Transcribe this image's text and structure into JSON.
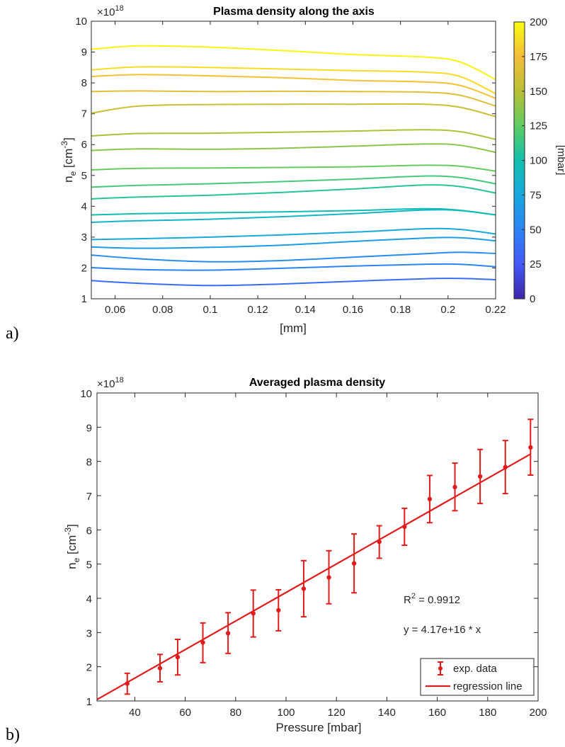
{
  "chart_data": [
    {
      "type": "line",
      "panel_letter": "a)",
      "title": "Plasma density along the axis",
      "xlabel": "[mm]",
      "ylabel": {
        "base": "n",
        "sub": "e",
        "open": " [cm",
        "sup": "-3",
        "close": "]"
      },
      "y_exponent": "×10",
      "y_exponent_power": "18",
      "xlim": [
        0.05,
        0.22
      ],
      "ylim": [
        1,
        10
      ],
      "xticks": [
        "0.06",
        "0.08",
        "0.1",
        "0.12",
        "0.14",
        "0.16",
        "0.18",
        "0.2",
        "0.22"
      ],
      "yticks": [
        "1",
        "2",
        "3",
        "4",
        "5",
        "6",
        "7",
        "8",
        "9",
        "10"
      ],
      "grid": false,
      "colorbar": {
        "label": "[mbar]",
        "range": [
          0,
          200
        ],
        "ticks": [
          "0",
          "25",
          "50",
          "75",
          "100",
          "125",
          "150",
          "175",
          "200"
        ],
        "colormap": "parula",
        "colors": [
          "#3e26a8",
          "#4358f6",
          "#2b83f6",
          "#17a8de",
          "#10c0ad",
          "#5ecc62",
          "#b8c033",
          "#f3be3a",
          "#f9fb0e"
        ]
      },
      "x": [
        0.05,
        0.07,
        0.1,
        0.13,
        0.16,
        0.19,
        0.205,
        0.22
      ],
      "series": [
        {
          "pressure": 37,
          "values": [
            1.59,
            1.5,
            1.43,
            1.48,
            1.57,
            1.65,
            1.66,
            1.62
          ]
        },
        {
          "pressure": 50,
          "values": [
            2.01,
            1.95,
            1.93,
            1.99,
            2.06,
            2.12,
            2.12,
            2.04
          ]
        },
        {
          "pressure": 57,
          "values": [
            2.42,
            2.3,
            2.2,
            2.24,
            2.35,
            2.46,
            2.51,
            2.47
          ]
        },
        {
          "pressure": 67,
          "values": [
            2.68,
            2.64,
            2.67,
            2.74,
            2.86,
            2.97,
            2.98,
            2.88
          ]
        },
        {
          "pressure": 77,
          "values": [
            2.92,
            2.95,
            3.0,
            3.07,
            3.16,
            3.27,
            3.25,
            3.1
          ]
        },
        {
          "pressure": 87,
          "values": [
            3.48,
            3.53,
            3.58,
            3.66,
            3.76,
            3.88,
            3.86,
            3.72
          ]
        },
        {
          "pressure": 97,
          "values": [
            3.72,
            3.76,
            3.79,
            3.82,
            3.86,
            3.92,
            3.87,
            3.72
          ]
        },
        {
          "pressure": 107,
          "values": [
            4.24,
            4.3,
            4.36,
            4.45,
            4.56,
            4.69,
            4.64,
            4.43
          ]
        },
        {
          "pressure": 117,
          "values": [
            4.62,
            4.68,
            4.73,
            4.8,
            4.88,
            4.98,
            4.93,
            4.73
          ]
        },
        {
          "pressure": 127,
          "values": [
            5.18,
            5.23,
            5.24,
            5.26,
            5.28,
            5.33,
            5.3,
            5.14
          ]
        },
        {
          "pressure": 137,
          "values": [
            5.81,
            5.86,
            5.85,
            5.88,
            5.95,
            6.02,
            5.98,
            5.75
          ]
        },
        {
          "pressure": 147,
          "values": [
            6.28,
            6.36,
            6.37,
            6.4,
            6.44,
            6.48,
            6.42,
            6.17
          ]
        },
        {
          "pressure": 157,
          "values": [
            7.02,
            7.25,
            7.3,
            7.31,
            7.31,
            7.31,
            7.21,
            6.91
          ]
        },
        {
          "pressure": 167,
          "values": [
            7.72,
            7.74,
            7.72,
            7.73,
            7.72,
            7.7,
            7.6,
            7.25
          ]
        },
        {
          "pressure": 177,
          "values": [
            8.21,
            8.27,
            8.23,
            8.17,
            8.08,
            8.03,
            7.92,
            7.5
          ]
        },
        {
          "pressure": 187,
          "values": [
            8.42,
            8.52,
            8.5,
            8.45,
            8.4,
            8.35,
            8.21,
            7.65
          ]
        },
        {
          "pressure": 197,
          "values": [
            9.09,
            9.2,
            9.16,
            9.05,
            8.92,
            8.84,
            8.68,
            8.11
          ]
        }
      ]
    },
    {
      "type": "scatter",
      "panel_letter": "b)",
      "title": "Averaged plasma density",
      "xlabel": "Pressure [mbar]",
      "ylabel": {
        "base": "n",
        "sub": "e",
        "open": " [cm",
        "sup": "-3",
        "close": "]"
      },
      "y_exponent": "×10",
      "y_exponent_power": "18",
      "xlim": [
        25,
        200
      ],
      "ylim": [
        1,
        10
      ],
      "xticks": [
        "40",
        "60",
        "80",
        "100",
        "120",
        "140",
        "160",
        "180",
        "200"
      ],
      "yticks": [
        "1",
        "2",
        "3",
        "4",
        "5",
        "6",
        "7",
        "8",
        "9",
        "10"
      ],
      "grid": false,
      "color": "#e01b1b",
      "legend": {
        "position": "bottom-right",
        "entries": [
          "exp. data",
          "regression line"
        ]
      },
      "annotations": {
        "r2_prefix": "R",
        "r2_sup": "2",
        "r2_value": " = 0.9912",
        "equation": "y = 4.17e+16 * x"
      },
      "regression": {
        "slope": 0.0417,
        "x_range": [
          25,
          197
        ]
      },
      "series": [
        {
          "name": "exp. data",
          "x": [
            37,
            50,
            57,
            67,
            77,
            87,
            97,
            107,
            117,
            127,
            137,
            147,
            157,
            167,
            177,
            187,
            197
          ],
          "y": [
            1.51,
            1.96,
            2.28,
            2.71,
            2.98,
            3.56,
            3.65,
            4.28,
            4.61,
            5.02,
            5.65,
            6.09,
            6.9,
            7.25,
            7.56,
            7.83,
            8.41
          ],
          "err_low": [
            1.2,
            1.56,
            1.76,
            2.12,
            2.39,
            2.87,
            3.05,
            3.46,
            3.84,
            4.16,
            5.17,
            5.55,
            6.21,
            6.56,
            6.77,
            7.06,
            7.6
          ],
          "err_high": [
            1.81,
            2.36,
            2.8,
            3.28,
            3.58,
            4.24,
            4.25,
            5.1,
            5.39,
            5.88,
            6.12,
            6.63,
            7.59,
            7.95,
            8.35,
            8.61,
            9.23
          ]
        }
      ]
    }
  ]
}
